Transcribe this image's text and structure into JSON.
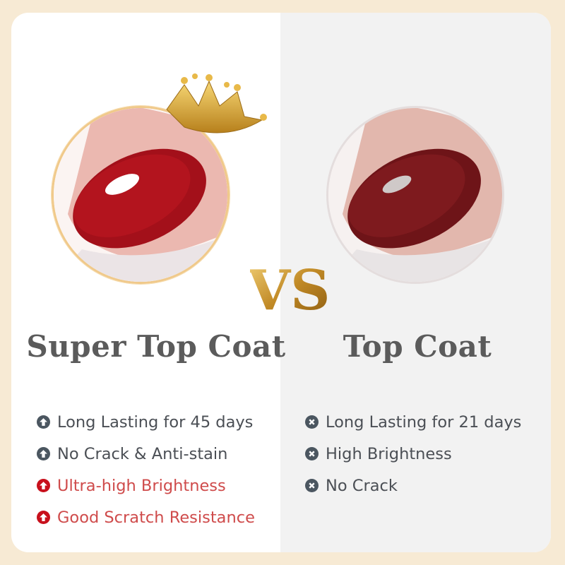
{
  "left": {
    "title": "Super Top Coat",
    "features": [
      {
        "text": "Long Lasting for 45 days",
        "icon": "arrow-up-circle-icon",
        "highlight": false
      },
      {
        "text": "No Crack & Anti-stain",
        "icon": "arrow-up-circle-icon",
        "highlight": false
      },
      {
        "text": "Ultra-high Brightness",
        "icon": "arrow-up-circle-icon",
        "highlight": true
      },
      {
        "text": "Good Scratch Resistance",
        "icon": "arrow-up-circle-icon",
        "highlight": true
      }
    ]
  },
  "right": {
    "title": "Top Coat",
    "features": [
      {
        "text": "Long Lasting for 21 days",
        "icon": "x-circle-icon"
      },
      {
        "text": "High Brightness",
        "icon": "x-circle-icon"
      },
      {
        "text": "No Crack",
        "icon": "x-circle-icon"
      }
    ]
  },
  "vs_logo": "VS",
  "colors": {
    "background": "#f7ead4",
    "gold": "#d4a23a",
    "highlight_red": "#cf4b4b",
    "icon_red": "#c8101c",
    "icon_gray": "#4b5660",
    "nail_red": "#a3101a",
    "nail_dark": "#6e1418"
  }
}
